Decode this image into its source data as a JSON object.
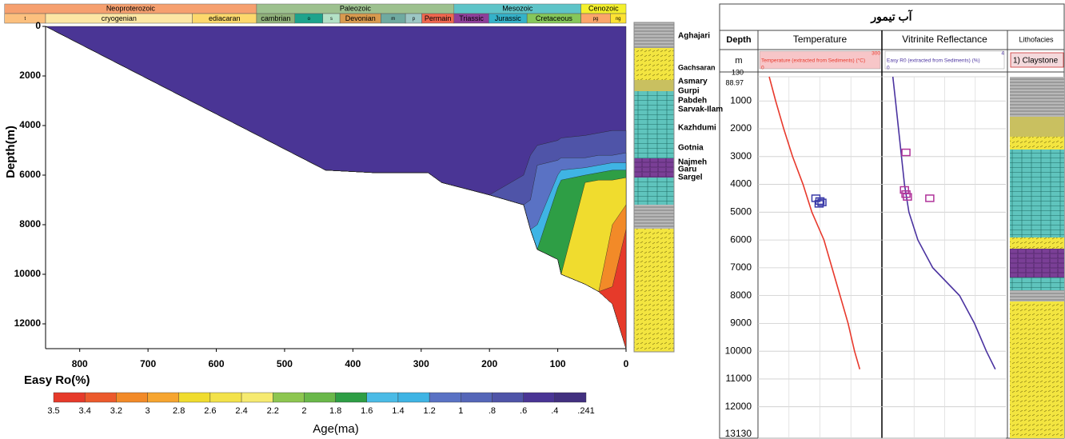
{
  "chart_data": [
    {
      "type": "burial-history",
      "xlabel": "Age(ma)",
      "ylabel": "Depth(m)",
      "xlim": [
        850,
        0
      ],
      "ylim": [
        0,
        13000
      ],
      "xticks": [
        800,
        700,
        600,
        500,
        400,
        300,
        200,
        100,
        0
      ],
      "yticks": [
        0,
        2000,
        4000,
        6000,
        8000,
        10000,
        12000
      ],
      "timescale": {
        "eras": [
          {
            "label": "Neoproterozoic",
            "start": 910,
            "end": 541,
            "color": "#f6a06f"
          },
          {
            "label": "Paleozoic",
            "start": 541,
            "end": 252,
            "color": "#9dc18f"
          },
          {
            "label": "Mesozoic",
            "start": 252,
            "end": 66,
            "color": "#5ec4c8"
          },
          {
            "label": "Cenozoic",
            "start": 66,
            "end": 0,
            "color": "#f4f02c"
          }
        ],
        "periods": [
          {
            "label": "t",
            "start": 910,
            "end": 850,
            "color": "#fcc07e"
          },
          {
            "label": "cryogenian",
            "start": 850,
            "end": 635,
            "color": "#fde7a4"
          },
          {
            "label": "ediacaran",
            "start": 635,
            "end": 541,
            "color": "#fdd86c"
          },
          {
            "label": "cambrian",
            "start": 541,
            "end": 485,
            "color": "#8fb07a"
          },
          {
            "label": "o",
            "start": 485,
            "end": 444,
            "color": "#1ea38c"
          },
          {
            "label": "s",
            "start": 444,
            "end": 419,
            "color": "#b3e1c6"
          },
          {
            "label": "Devonian",
            "start": 419,
            "end": 359,
            "color": "#d99a4e"
          },
          {
            "label": "m",
            "start": 359,
            "end": 323,
            "color": "#6faaa0"
          },
          {
            "label": "p",
            "start": 323,
            "end": 299,
            "color": "#9cc7c4"
          },
          {
            "label": "Permain",
            "start": 299,
            "end": 252,
            "color": "#f0674e"
          },
          {
            "label": "Triassic",
            "start": 252,
            "end": 201,
            "color": "#8e3f9a"
          },
          {
            "label": "Jurassic",
            "start": 201,
            "end": 145,
            "color": "#34b2c9"
          },
          {
            "label": "Cretaceous",
            "start": 145,
            "end": 66,
            "color": "#86c75a"
          },
          {
            "label": "pg",
            "start": 66,
            "end": 23,
            "color": "#fba56a"
          },
          {
            "label": "ng",
            "start": 23,
            "end": 0,
            "color": "#fde232"
          }
        ]
      },
      "x": [
        850,
        440,
        370,
        290,
        270,
        200,
        150,
        140,
        130,
        100,
        95,
        60,
        40,
        20,
        0
      ],
      "series": [
        {
          "color": "#4a3595",
          "values": [
            0,
            5800,
            5900,
            5900,
            6300,
            6800,
            7200,
            8200,
            9000,
            9400,
            10000,
            10400,
            10700,
            11200,
            13000
          ]
        },
        {
          "color": "#4f54a8",
          "values": [
            0,
            5800,
            5900,
            5900,
            6300,
            6800,
            6000,
            5200,
            4800,
            4600,
            4500,
            4400,
            4300,
            4200,
            4200
          ]
        },
        {
          "color": "#5a72c4",
          "values": [
            0,
            5800,
            5900,
            5900,
            6300,
            6800,
            7200,
            7000,
            5600,
            5400,
            5300,
            5300,
            5200,
            5200,
            5100
          ]
        },
        {
          "color": "#3fb4e4",
          "values": [
            0,
            5800,
            5900,
            5900,
            6300,
            6800,
            7200,
            8200,
            8000,
            6000,
            5800,
            5700,
            5600,
            5500,
            5500
          ]
        },
        {
          "color": "#2e9e45",
          "values": [
            0,
            5800,
            5900,
            5900,
            6300,
            6800,
            7200,
            8200,
            9000,
            6500,
            6200,
            6000,
            5900,
            5800,
            5800
          ]
        },
        {
          "color": "#f0dc2e",
          "values": [
            0,
            5800,
            5900,
            5900,
            6300,
            6800,
            7200,
            8200,
            9000,
            9400,
            10000,
            6300,
            6200,
            6200,
            6100
          ]
        },
        {
          "color": "#f28a28",
          "values": [
            0,
            5800,
            5900,
            5900,
            6300,
            6800,
            7200,
            8200,
            9000,
            9400,
            10000,
            10400,
            10700,
            8000,
            7200
          ]
        },
        {
          "color": "#e63a2a",
          "values": [
            0,
            5800,
            5900,
            5900,
            6300,
            6800,
            7200,
            8200,
            9000,
            9400,
            10000,
            10400,
            10700,
            10500,
            8200
          ]
        }
      ],
      "formations": [
        "Aghajari",
        "Gachsaran",
        "Asmary",
        "Gurpi",
        "Pabdeh",
        "Sarvak-Ilam",
        "Kazhdumi",
        "Gotnia",
        "Najmeh",
        "Garu",
        "Sargel"
      ],
      "colorbar": {
        "title": "Easy Ro(%)",
        "ticks": [
          3.5,
          3.4,
          3.2,
          3,
          2.8,
          2.6,
          2.4,
          2.2,
          2,
          1.8,
          1.6,
          1.4,
          1.2,
          1,
          {
            "value": 0.8,
            "label": ".8"
          },
          {
            "value": 0.6,
            "label": ".6"
          },
          {
            "value": 0.4,
            "label": ".4"
          },
          {
            "value": 0.241,
            "label": ".241"
          }
        ],
        "colors": [
          "#e63a2a",
          "#ec5a2c",
          "#f28a28",
          "#f6a530",
          "#f0dc2e",
          "#f3e24a",
          "#f6ea70",
          "#8dc650",
          "#6ab84a",
          "#2e9e45",
          "#4bbbe6",
          "#3fb4e4",
          "#5a72c4",
          "#5566b8",
          "#4f54a8",
          "#4a3595",
          "#42307f"
        ]
      }
    },
    {
      "type": "well-log",
      "title": "آب تیمور",
      "depth_header": "Depth",
      "depth_unit": "m",
      "ylim": [
        130,
        13130
      ],
      "yticks": [
        130,
        1000,
        2000,
        3000,
        4000,
        5000,
        6000,
        7000,
        8000,
        9000,
        10000,
        11000,
        12000,
        13130
      ],
      "datum": 88.97,
      "depths": [
        130,
        1000,
        2000,
        3000,
        4000,
        5000,
        6000,
        7000,
        8000,
        9000,
        10000,
        10650
      ],
      "tracks": [
        {
          "header": "Temperature",
          "unit_label": "Temperature (extracted from Sediments) (°C)",
          "xlim": [
            0,
            300
          ],
          "color": "#e8392c",
          "band": "#f7c6c8",
          "values": [
            24,
            40,
            60,
            82,
            108,
            130,
            160,
            180,
            200,
            220,
            236,
            249
          ],
          "measured": {
            "color": "#3a3aa8",
            "depths": [
              4500,
              4600,
              4650,
              4700
            ],
            "values": [
              140,
              150,
              155,
              148
            ]
          }
        },
        {
          "header": "Vitrinite  Reflectance",
          "unit_label": "Easy R0 (extracted from Sediments) (%)",
          "xlim": [
            0,
            4
          ],
          "color": "#4b33a0",
          "band": "#ffffff",
          "values": [
            0.26,
            0.35,
            0.45,
            0.55,
            0.65,
            0.8,
            1.1,
            1.6,
            2.5,
            3.0,
            3.4,
            3.7
          ],
          "measured": {
            "color": "#b0339a",
            "depths": [
              2850,
              4200,
              4350,
              4450,
              4500
            ],
            "values": [
              0.7,
              0.65,
              0.7,
              0.75,
              1.5
            ]
          }
        }
      ],
      "lithofacies": {
        "header": "Lithofacies",
        "legend": "1) Claystone"
      }
    }
  ]
}
